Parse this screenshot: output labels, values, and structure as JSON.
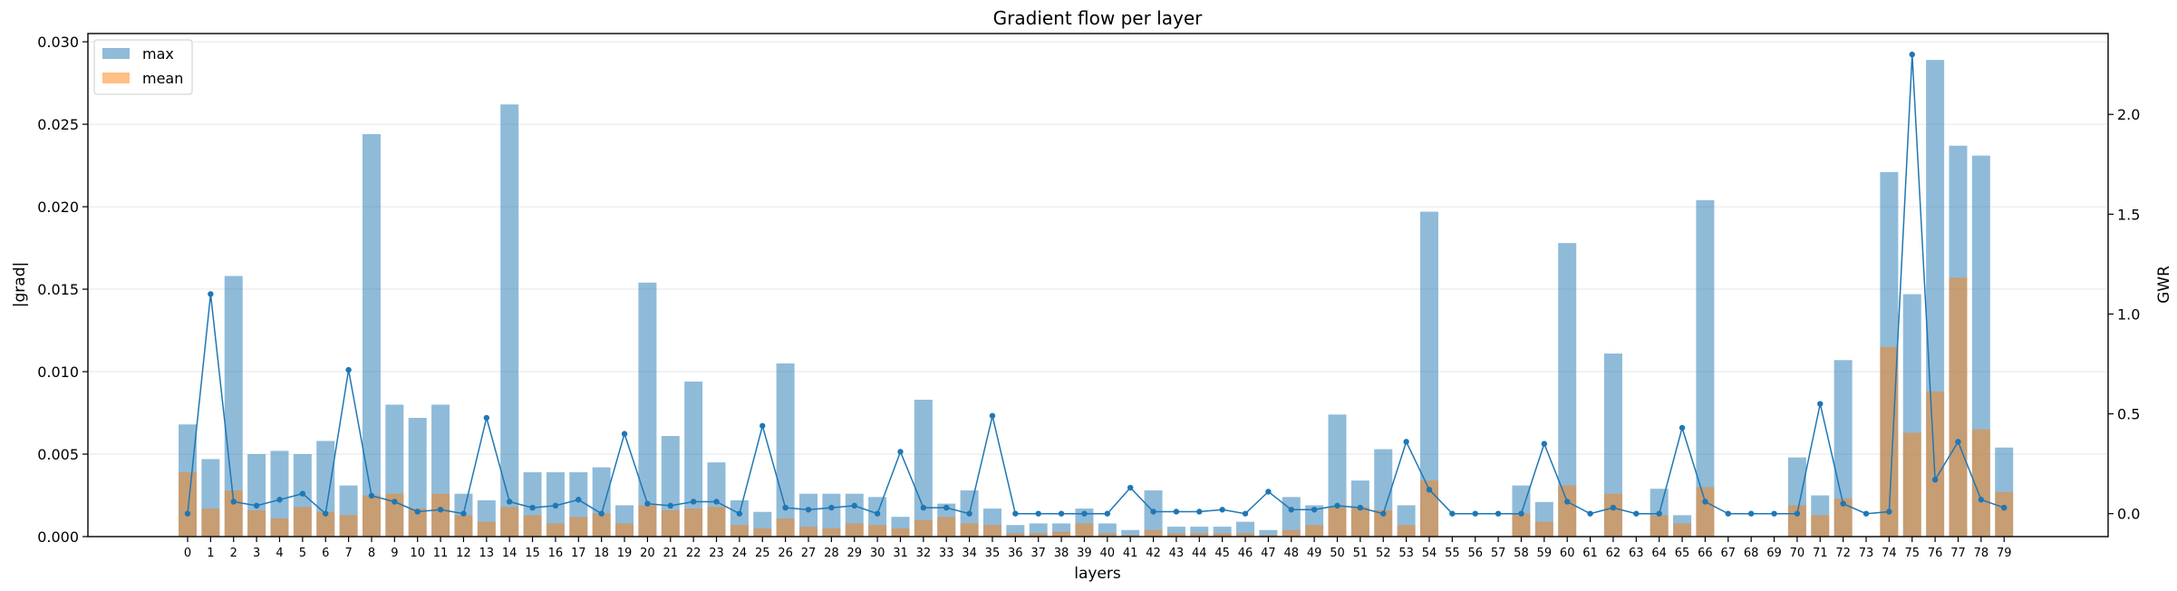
{
  "chart_data": {
    "type": "bar",
    "title": "Gradient flow per layer",
    "xlabel": "layers",
    "ylabel": "|grad|",
    "y2label": "GWR",
    "ylim": [
      0,
      0.0305
    ],
    "y2lim": [
      -0.115,
      2.405
    ],
    "yticks": [
      "0.000",
      "0.005",
      "0.010",
      "0.015",
      "0.020",
      "0.025",
      "0.030"
    ],
    "y2ticks": [
      "0.0",
      "0.5",
      "1.0",
      "1.5",
      "2.0"
    ],
    "grid": "horizontal",
    "legend_position": "top-left",
    "categories": [
      "0",
      "1",
      "2",
      "3",
      "4",
      "5",
      "6",
      "7",
      "8",
      "9",
      "10",
      "11",
      "12",
      "13",
      "14",
      "15",
      "16",
      "17",
      "18",
      "19",
      "20",
      "21",
      "22",
      "23",
      "24",
      "25",
      "26",
      "27",
      "28",
      "29",
      "30",
      "31",
      "32",
      "33",
      "34",
      "35",
      "36",
      "37",
      "38",
      "39",
      "40",
      "41",
      "42",
      "43",
      "44",
      "45",
      "46",
      "47",
      "48",
      "49",
      "50",
      "51",
      "52",
      "53",
      "54",
      "55",
      "56",
      "57",
      "58",
      "59",
      "60",
      "61",
      "62",
      "63",
      "64",
      "65",
      "66",
      "67",
      "68",
      "69",
      "70",
      "71",
      "72",
      "73",
      "74",
      "75",
      "76",
      "77",
      "78",
      "79"
    ],
    "series": [
      {
        "name": "max",
        "color": "#1f77b4",
        "values": [
          0.0068,
          0.0047,
          0.0158,
          0.005,
          0.0052,
          0.005,
          0.0058,
          0.0031,
          0.0244,
          0.008,
          0.0072,
          0.008,
          0.0026,
          0.0022,
          0.0262,
          0.0039,
          0.0039,
          0.0039,
          0.0042,
          0.0019,
          0.0154,
          0.0061,
          0.0094,
          0.0045,
          0.0022,
          0.0015,
          0.0105,
          0.0026,
          0.0026,
          0.0026,
          0.0024,
          0.0012,
          0.0083,
          0.002,
          0.0028,
          0.0017,
          0.0007,
          0.0008,
          0.0008,
          0.0017,
          0.0008,
          0.0004,
          0.0028,
          0.0006,
          0.0006,
          0.0006,
          0.0009,
          0.0004,
          0.0024,
          0.0019,
          0.0074,
          0.0034,
          0.0053,
          0.0019,
          0.0197,
          0.0,
          0.0,
          0.0,
          0.0031,
          0.0021,
          0.0178,
          0.0,
          0.0111,
          0.0,
          0.0029,
          0.0013,
          0.0204,
          0.0,
          0.0,
          0.0,
          0.0048,
          0.0025,
          0.0107,
          0.0,
          0.0221,
          0.0147,
          0.0289,
          0.0237,
          0.0231,
          0.0054
        ]
      },
      {
        "name": "mean",
        "color": "#ff7f0e",
        "values": [
          0.0039,
          0.0017,
          0.0028,
          0.0016,
          0.0011,
          0.0018,
          0.0015,
          0.0013,
          0.0025,
          0.0026,
          0.0017,
          0.0026,
          0.0013,
          0.0009,
          0.0018,
          0.0013,
          0.0008,
          0.0012,
          0.0014,
          0.0008,
          0.0019,
          0.0016,
          0.0017,
          0.0018,
          0.0007,
          0.0005,
          0.0011,
          0.0006,
          0.0005,
          0.0008,
          0.0007,
          0.0005,
          0.001,
          0.0012,
          0.0008,
          0.0007,
          0.0002,
          0.0002,
          0.0003,
          0.0008,
          0.0002,
          0.0001,
          0.0004,
          0.0002,
          0.0002,
          0.0002,
          0.0002,
          0.0001,
          0.0004,
          0.0007,
          0.0018,
          0.0018,
          0.0016,
          0.0007,
          0.0034,
          0.0,
          0.0,
          0.0,
          0.0014,
          0.0009,
          0.0031,
          0.0,
          0.0026,
          0.0,
          0.0013,
          0.0008,
          0.003,
          0.0,
          0.0,
          0.0,
          0.0019,
          0.0013,
          0.0023,
          0.0,
          0.0115,
          0.0063,
          0.0088,
          0.0157,
          0.0065,
          0.0027
        ]
      },
      {
        "name": "GWR",
        "color": "#1f77b4",
        "values": [
          0.0,
          1.1,
          0.06,
          0.04,
          0.07,
          0.1,
          0.0,
          0.72,
          0.09,
          0.06,
          0.01,
          0.02,
          0.0,
          0.48,
          0.06,
          0.03,
          0.04,
          0.07,
          0.0,
          0.4,
          0.05,
          0.04,
          0.06,
          0.06,
          0.0,
          0.44,
          0.03,
          0.02,
          0.03,
          0.04,
          0.0,
          0.31,
          0.03,
          0.03,
          0.0,
          0.49,
          0.0,
          0.0,
          0.0,
          0.0,
          0.0,
          0.13,
          0.01,
          0.01,
          0.01,
          0.02,
          0.0,
          0.11,
          0.02,
          0.02,
          0.04,
          0.03,
          0.0,
          0.36,
          0.12,
          0.0,
          0.0,
          0.0,
          0.0,
          0.35,
          0.06,
          0.0,
          0.03,
          0.0,
          0.0,
          0.43,
          0.06,
          0.0,
          0.0,
          0.0,
          0.0,
          0.55,
          0.05,
          0.0,
          0.01,
          2.3,
          0.17,
          0.36,
          0.07,
          0.03
        ]
      }
    ]
  }
}
